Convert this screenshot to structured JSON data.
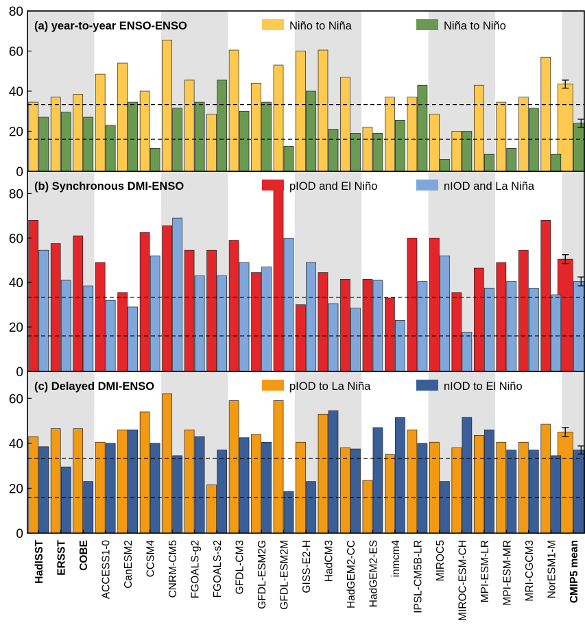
{
  "figure": {
    "categories": [
      "HadISST",
      "ERSST",
      "COBE",
      "ACCESS1-0",
      "CanESM2",
      "CCSM4",
      "CNRM-CM5",
      "FGOALS-g2",
      "FGOALS-s2",
      "GFDL-CM3",
      "GFDL-ESM2G",
      "GFDL-ESM2M",
      "GISS-E2-H",
      "HadCM3",
      "HadGEM2-CC",
      "HadGEM2-ES",
      "inmcm4",
      "IPSL-CM5B-LR",
      "MIROC5",
      "MIROC-ESM-CH",
      "MPI-ESM-LR",
      "MPI-ESM-MR",
      "MRI-CGCM3",
      "NorESM1-M",
      "CMIP5 mean"
    ],
    "bold_categories": [
      "HadISST",
      "ERSST",
      "COBE",
      "CMIP5 mean"
    ],
    "shaded_groups": [
      [
        0,
        2
      ],
      [
        6,
        8
      ],
      [
        12,
        14
      ],
      [
        18,
        20
      ],
      [
        24,
        24
      ]
    ],
    "reference_lines": [
      33.3,
      16
    ]
  },
  "chart_data": [
    {
      "type": "bar",
      "title": "(a) year-to-year ENSO-ENSO",
      "ylim": [
        0,
        80
      ],
      "yticks": [
        0,
        20,
        40,
        60,
        80
      ],
      "grid": false,
      "legend_position": "top",
      "series": [
        {
          "name": "Niño to Niña",
          "color": "#FDC94F",
          "values": [
            34.5,
            37,
            38.5,
            48.5,
            54,
            40,
            65.5,
            45.5,
            28.5,
            60.5,
            44,
            53,
            60,
            60.5,
            47,
            22,
            37,
            37,
            28.5,
            20,
            43,
            34.5,
            37,
            57,
            43.5
          ],
          "error": [
            null,
            null,
            null,
            null,
            null,
            null,
            null,
            null,
            null,
            null,
            null,
            null,
            null,
            null,
            null,
            null,
            null,
            null,
            null,
            null,
            null,
            null,
            null,
            null,
            2
          ]
        },
        {
          "name": "Niña to Niño",
          "color": "#6A9A52",
          "values": [
            27,
            29.5,
            27,
            23,
            34.5,
            11.5,
            31.5,
            34.5,
            45.5,
            30,
            34.5,
            12.5,
            40,
            21,
            19,
            19,
            25.5,
            43,
            6,
            20,
            8.5,
            11.5,
            31.5,
            8.5,
            24
          ],
          "error": [
            null,
            null,
            null,
            null,
            null,
            null,
            null,
            null,
            null,
            null,
            null,
            null,
            null,
            null,
            null,
            null,
            null,
            null,
            null,
            null,
            null,
            null,
            null,
            null,
            2
          ]
        }
      ]
    },
    {
      "type": "bar",
      "title": "(b) Synchronous DMI-ENSO",
      "ylim": [
        0,
        90
      ],
      "yticks": [
        0,
        20,
        40,
        60,
        80
      ],
      "grid": false,
      "legend_position": "top",
      "series": [
        {
          "name": "pIOD and El Niño",
          "color": "#E3262A",
          "values": [
            68,
            57.5,
            61,
            49,
            35.5,
            62.5,
            65.5,
            54.5,
            54.5,
            59,
            44.5,
            83,
            30,
            44.5,
            41.5,
            41.5,
            33,
            60,
            60,
            35.5,
            46.5,
            49,
            54.5,
            68,
            50.5
          ],
          "error": [
            null,
            null,
            null,
            null,
            null,
            null,
            null,
            null,
            null,
            null,
            null,
            null,
            null,
            null,
            null,
            null,
            null,
            null,
            null,
            null,
            null,
            null,
            null,
            null,
            2
          ]
        },
        {
          "name": "nIOD and La Niña",
          "color": "#7FA7DC",
          "values": [
            54.5,
            41,
            38.5,
            32,
            29,
            52,
            69,
            43,
            43,
            49,
            47,
            60,
            49,
            30.5,
            28.5,
            41,
            23,
            40.5,
            52,
            17.5,
            37.5,
            40.5,
            37.5,
            34.5,
            40.5
          ],
          "error": [
            null,
            null,
            null,
            null,
            null,
            null,
            null,
            null,
            null,
            null,
            null,
            null,
            null,
            null,
            null,
            null,
            null,
            null,
            null,
            null,
            null,
            null,
            null,
            null,
            2
          ]
        }
      ]
    },
    {
      "type": "bar",
      "title": "(c) Delayed DMI-ENSO",
      "ylim": [
        0,
        72
      ],
      "yticks": [
        0,
        20,
        40,
        60
      ],
      "grid": false,
      "legend_position": "top",
      "series": [
        {
          "name": "pIOD to La Niña",
          "color": "#F29A13",
          "values": [
            43,
            46.5,
            46.5,
            40.5,
            46,
            54,
            62,
            46,
            21.5,
            59,
            44,
            59,
            40.5,
            53,
            38,
            23.5,
            35,
            46,
            40.5,
            38,
            43.5,
            40.5,
            40.5,
            48.5,
            45
          ],
          "error": [
            null,
            null,
            null,
            null,
            null,
            null,
            null,
            null,
            null,
            null,
            null,
            null,
            null,
            null,
            null,
            null,
            null,
            null,
            null,
            null,
            null,
            null,
            null,
            null,
            2
          ]
        },
        {
          "name": "nIOD to El Niño",
          "color": "#3A5F98",
          "values": [
            38.5,
            29.5,
            23,
            40,
            46,
            40,
            34.5,
            43,
            37,
            42.5,
            40.5,
            18.5,
            23,
            54.5,
            37.5,
            47,
            51.5,
            40,
            23,
            51.5,
            46,
            37,
            37,
            34.5,
            37
          ],
          "error": [
            null,
            null,
            null,
            null,
            null,
            null,
            null,
            null,
            null,
            null,
            null,
            null,
            null,
            null,
            null,
            null,
            null,
            null,
            null,
            null,
            null,
            null,
            null,
            null,
            1.8
          ]
        }
      ]
    }
  ]
}
